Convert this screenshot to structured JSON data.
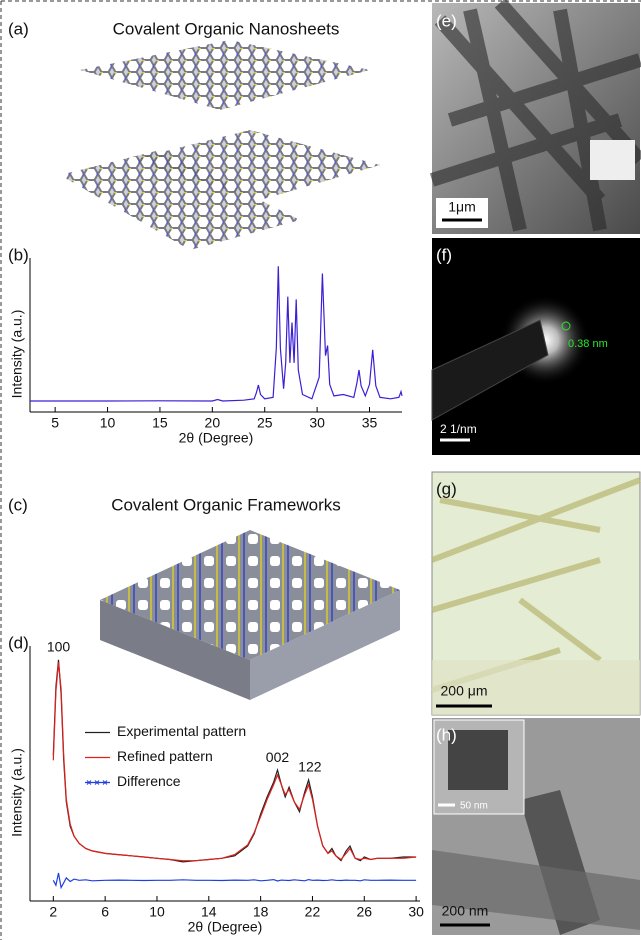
{
  "chart_data": [
    {
      "type": "line",
      "xlabel": "2θ (Degree)",
      "ylabel": "Intensity (a.u.)",
      "x": [
        2.6,
        5,
        10,
        15,
        20,
        20.5,
        21,
        23,
        24,
        24.2,
        24.4,
        24.6,
        25,
        25.8,
        26.1,
        26.3,
        26.5,
        26.8,
        27.0,
        27.2,
        27.4,
        27.6,
        27.8,
        28.0,
        28.2,
        28.6,
        29.5,
        30.2,
        30.5,
        30.8,
        31.0,
        31.2,
        31.6,
        32.5,
        33.5,
        33.8,
        34.0,
        34.2,
        34.6,
        35.0,
        35.3,
        35.6,
        36,
        37,
        37.8,
        38,
        38.1
      ],
      "series": [
        {
          "color": "#3a1fd6",
          "values": [
            3.5,
            3.5,
            3.5,
            3.6,
            3.5,
            4.5,
            3.5,
            4,
            5,
            9,
            14.6,
            8,
            5,
            6,
            40,
            97,
            40,
            12,
            30,
            76,
            30,
            58,
            30,
            74,
            25,
            8,
            5,
            20,
            92,
            35,
            42,
            15,
            7,
            8,
            6,
            16,
            25,
            14,
            7,
            15,
            39,
            14,
            6,
            5,
            6,
            10,
            7
          ]
        }
      ],
      "xlim": [
        2.6,
        38.1
      ],
      "ylim": [
        0,
        100
      ],
      "xticks": [
        5,
        10,
        15,
        20,
        25,
        30,
        35
      ]
    },
    {
      "type": "line",
      "xlabel": "2θ (Degree)",
      "ylabel": "Intensity (a.u.)",
      "x": [
        2.0,
        2.2,
        2.4,
        2.6,
        2.8,
        3.0,
        3.3,
        3.6,
        4.0,
        4.5,
        5,
        6,
        7,
        8,
        9,
        10,
        11,
        12,
        13,
        14,
        15,
        16,
        17,
        17.5,
        18,
        18.5,
        19,
        19.3,
        19.6,
        19.9,
        20.2,
        20.6,
        21,
        21.4,
        21.7,
        22,
        22.4,
        22.8,
        23.2,
        23.5,
        23.8,
        24.2,
        24.6,
        24.9,
        25.3,
        25.7,
        26,
        26.5,
        27,
        28,
        29,
        30
      ],
      "series": [
        {
          "name": "Experimental pattern",
          "color": "#222222",
          "values": [
            57,
            85,
            96,
            82,
            55,
            38,
            28,
            24,
            21,
            19,
            18,
            17,
            16.5,
            16,
            15.5,
            15,
            14.5,
            13.5,
            14,
            14.5,
            15,
            16,
            20,
            25,
            33,
            40,
            46,
            51,
            45,
            40,
            44,
            38,
            34,
            42,
            47,
            40,
            28,
            20,
            17,
            19,
            16,
            14,
            18,
            20,
            15,
            14,
            15.5,
            14.5,
            15,
            15,
            15.5,
            15.5
          ]
        },
        {
          "name": "Refined pattern",
          "color": "#e0201b",
          "values": [
            55,
            83,
            95,
            84,
            57,
            39,
            29,
            24,
            21,
            19,
            18,
            17,
            16.5,
            16,
            15.5,
            15,
            14.5,
            14,
            14,
            14.5,
            15,
            16.5,
            20.5,
            25.5,
            32,
            39,
            45,
            49,
            45,
            41,
            43,
            38,
            35,
            41,
            45,
            39,
            28,
            20,
            17,
            18,
            16,
            14.5,
            17,
            19,
            15,
            14.5,
            15,
            14.5,
            15,
            15,
            15,
            15.5
          ]
        },
        {
          "name": "Difference",
          "color": "#1f3fe0",
          "marker": "x",
          "values": [
            6,
            4,
            9,
            3,
            5,
            7,
            5.5,
            6.5,
            6,
            6.2,
            5.8,
            6,
            6.1,
            6,
            5.9,
            6,
            6,
            6.2,
            6,
            6,
            5.9,
            6.1,
            6,
            6.2,
            5.8,
            6,
            6.3,
            5.7,
            6.1,
            6,
            5.9,
            6.2,
            6,
            5.8,
            6.3,
            6,
            6.1,
            5.9,
            6,
            6.2,
            6,
            5.9,
            6.1,
            6,
            6,
            5.8,
            6.2,
            6,
            6,
            6.1,
            6,
            6
          ]
        }
      ],
      "annotations": [
        {
          "text": "100",
          "x": 2.4,
          "y": 96
        },
        {
          "text": "002",
          "x": 19.3,
          "y": 51
        },
        {
          "text": "122",
          "x": 21.8,
          "y": 47
        }
      ],
      "legend": "center left",
      "xlim": [
        0.2,
        30.3
      ],
      "ylim": [
        0,
        100
      ],
      "xticks": [
        2,
        6,
        10,
        14,
        18,
        22,
        26,
        30
      ]
    }
  ],
  "panels": {
    "a": {
      "label": "(a)",
      "title": "Covalent Organic Nanosheets"
    },
    "b": {
      "label": "(b)"
    },
    "c": {
      "label": "(c)",
      "title": "Covalent Organic Frameworks"
    },
    "d": {
      "label": "(d)"
    },
    "e": {
      "label": "(e)",
      "scale_bar": "1μm"
    },
    "f": {
      "label": "(f)",
      "scale_bar": "2 1/nm",
      "annotation": "0.38 nm"
    },
    "g": {
      "label": "(g)",
      "scale_bar": "200 μm"
    },
    "h": {
      "label": "(h)",
      "inset_scale_bar": "50 nm",
      "scale_bar": "200 nm"
    }
  }
}
